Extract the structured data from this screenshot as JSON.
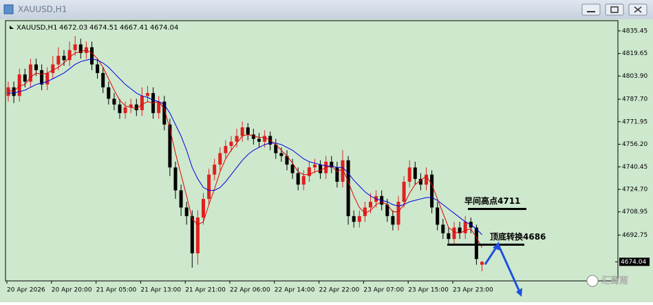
{
  "chart_data": {
    "type": "candlestick",
    "window_title": "XAUUSD,H1",
    "title": "XAUUSD,H1",
    "categories": [
      "20 Apr 2026",
      null,
      null,
      null,
      null,
      null,
      null,
      null,
      "20 Apr 20:00",
      null,
      null,
      null,
      null,
      null,
      null,
      null,
      "21 Apr 05:00",
      null,
      null,
      null,
      null,
      null,
      null,
      null,
      "21 Apr 13:00",
      null,
      null,
      null,
      null,
      null,
      null,
      null,
      "21 Apr 21:00",
      null,
      null,
      null,
      null,
      null,
      null,
      null,
      "22 Apr 06:00",
      null,
      null,
      null,
      null,
      null,
      null,
      null,
      "22 Apr 14:00",
      null,
      null,
      null,
      null,
      null,
      null,
      null,
      "22 Apr 22:00",
      null,
      null,
      null,
      null,
      null,
      null,
      null,
      "23 Apr 07:00",
      null,
      null,
      null,
      null,
      null,
      null,
      null,
      "23 Apr 15:00",
      null,
      null,
      null,
      null,
      null,
      null,
      null,
      "23 Apr 23:00",
      null,
      null,
      null,
      null,
      null
    ],
    "open": [
      4790,
      4796,
      4790,
      4805,
      4800,
      4812,
      4808,
      4798,
      4806,
      4812,
      4818,
      4815,
      4822,
      4826,
      4820,
      4824,
      4812,
      4806,
      4796,
      4788,
      4784,
      4778,
      4782,
      4784,
      4780,
      4790,
      4792,
      4778,
      4786,
      4770,
      4740,
      4724,
      4712,
      4706,
      4680,
      4705,
      4718,
      4735,
      4742,
      4750,
      4755,
      4758,
      4762,
      4768,
      4763,
      4760,
      4758,
      4762,
      4756,
      4750,
      4748,
      4742,
      4736,
      4728,
      4734,
      4740,
      4742,
      4736,
      4744,
      4740,
      4730,
      4745,
      4706,
      4702,
      4706,
      4712,
      4716,
      4720,
      4714,
      4706,
      4700,
      4716,
      4730,
      4740,
      4732,
      4728,
      4735,
      4712,
      4700,
      4694,
      4690,
      4698,
      4694,
      4702,
      4698,
      4672.03
    ],
    "high": [
      4800,
      4800,
      4809,
      4809,
      4816,
      4816,
      4812,
      4810,
      4818,
      4824,
      4822,
      4828,
      4832,
      4830,
      4828,
      4828,
      4816,
      4810,
      4800,
      4792,
      4788,
      4786,
      4788,
      4788,
      4796,
      4797,
      4796,
      4790,
      4790,
      4774,
      4744,
      4728,
      4716,
      4710,
      4710,
      4722,
      4739,
      4746,
      4754,
      4759,
      4762,
      4767,
      4772,
      4771,
      4767,
      4764,
      4766,
      4765,
      4760,
      4754,
      4752,
      4746,
      4740,
      4738,
      4744,
      4746,
      4745,
      4748,
      4748,
      4744,
      4752,
      4748,
      4710,
      4710,
      4716,
      4722,
      4724,
      4724,
      4718,
      4710,
      4720,
      4734,
      4745,
      4744,
      4736,
      4740,
      4738,
      4716,
      4704,
      4698,
      4702,
      4702,
      4706,
      4705,
      4700,
      4674.51
    ],
    "low": [
      4786,
      4785,
      4786,
      4796,
      4796,
      4804,
      4794,
      4794,
      4802,
      4808,
      4811,
      4811,
      4818,
      4816,
      4816,
      4808,
      4802,
      4792,
      4784,
      4780,
      4774,
      4774,
      4778,
      4776,
      4776,
      4786,
      4774,
      4774,
      4766,
      4734,
      4718,
      4706,
      4700,
      4670,
      4672,
      4700,
      4714,
      4731,
      4738,
      4746,
      4751,
      4754,
      4758,
      4759,
      4756,
      4754,
      4754,
      4752,
      4746,
      4744,
      4738,
      4732,
      4724,
      4724,
      4730,
      4736,
      4732,
      4732,
      4736,
      4726,
      4726,
      4700,
      4698,
      4698,
      4702,
      4708,
      4712,
      4710,
      4702,
      4696,
      4696,
      4712,
      4726,
      4728,
      4724,
      4724,
      4708,
      4696,
      4690,
      4686,
      4686,
      4690,
      4690,
      4694,
      4672,
      4667.41
    ],
    "close": [
      4796,
      4790,
      4805,
      4800,
      4812,
      4808,
      4798,
      4806,
      4812,
      4818,
      4815,
      4822,
      4826,
      4820,
      4824,
      4812,
      4806,
      4796,
      4788,
      4784,
      4778,
      4782,
      4784,
      4780,
      4790,
      4792,
      4778,
      4786,
      4770,
      4740,
      4724,
      4712,
      4706,
      4680,
      4705,
      4718,
      4735,
      4742,
      4750,
      4755,
      4758,
      4762,
      4768,
      4763,
      4760,
      4758,
      4762,
      4756,
      4750,
      4748,
      4742,
      4736,
      4728,
      4734,
      4740,
      4742,
      4736,
      4744,
      4740,
      4730,
      4745,
      4706,
      4702,
      4706,
      4712,
      4716,
      4720,
      4714,
      4706,
      4700,
      4716,
      4730,
      4740,
      4732,
      4728,
      4735,
      4712,
      4700,
      4694,
      4690,
      4698,
      4694,
      4702,
      4698,
      4676,
      4674.04
    ],
    "up_color": "#e02020",
    "down_color": "#000000",
    "series": [
      {
        "color": "#e00000",
        "values": [
          4794,
          4793,
          4797,
          4798,
          4803,
          4806,
          4805,
          4806,
          4808,
          4810,
          4813,
          4817,
          4820,
          4821,
          4822,
          4820,
          4816,
          4810,
          4802,
          4794,
          4787,
          4783,
          4782,
          4781,
          4784,
          4786,
          4785,
          4786,
          4781,
          4767,
          4750,
          4735,
          4720,
          4704,
          4700,
          4702,
          4714,
          4725,
          4737,
          4746,
          4752,
          4757,
          4762,
          4763,
          4762,
          4761,
          4761,
          4759,
          4756,
          4752,
          4748,
          4743,
          4737,
          4735,
          4735,
          4737,
          4738,
          4740,
          4741,
          4737,
          4739,
          4730,
          4720,
          4712,
          4708,
          4710,
          4714,
          4716,
          4714,
          4709,
          4709,
          4714,
          4722,
          4728,
          4731,
          4734,
          4728,
          4718,
          4708,
          4698,
          4695,
          4694,
          4696,
          4697,
          4691,
          4684
        ]
      },
      {
        "color": "#0000e0",
        "values": [
          4792,
          4792,
          4793,
          4794,
          4796,
          4798,
          4799,
          4800,
          4802,
          4804,
          4806,
          4809,
          4812,
          4814,
          4815,
          4816,
          4815,
          4813,
          4810,
          4806,
          4802,
          4798,
          4795,
          4792,
          4790,
          4789,
          4787,
          4786,
          4784,
          4778,
          4770,
          4762,
          4752,
          4740,
          4732,
          4726,
          4724,
          4724,
          4726,
          4730,
          4735,
          4740,
          4745,
          4749,
          4752,
          4754,
          4756,
          4757,
          4757,
          4756,
          4754,
          4752,
          4749,
          4746,
          4744,
          4743,
          4742,
          4741,
          4741,
          4740,
          4740,
          4736,
          4731,
          4727,
          4723,
          4720,
          4718,
          4717,
          4716,
          4714,
          4713,
          4714,
          4716,
          4717,
          4718,
          4719,
          4719,
          4717,
          4714,
          4711,
          4708,
          4705,
          4702,
          4700,
          4697,
          4693
        ]
      }
    ],
    "ylim": [
      4660.7,
      4842.6
    ],
    "yticks": [
      4835.45,
      4819.65,
      {
        "value": 4803.9,
        "label": "4803.90"
      },
      {
        "value": 4787.7,
        "label": "4787.70"
      },
      4771.95,
      {
        "value": 4756.2,
        "label": "4756.20"
      },
      4740.45,
      {
        "value": 4724.7,
        "label": "4724.70"
      },
      4708.95,
      4692.75
    ],
    "grid": false,
    "annotations": [
      {
        "text": "早间高点4711",
        "level": 4711
      },
      {
        "text": "顶底转换4686",
        "level": 4686
      }
    ],
    "watermark": "汇商南"
  }
}
